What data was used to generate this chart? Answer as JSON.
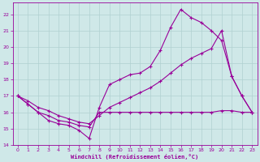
{
  "xlabel": "Windchill (Refroidissement éolien,°C)",
  "bg_color": "#cfe8e8",
  "line_color": "#990099",
  "grid_color": "#b0d0d0",
  "xlim": [
    -0.5,
    23.5
  ],
  "ylim": [
    14,
    22.7
  ],
  "xticks": [
    0,
    1,
    2,
    3,
    4,
    5,
    6,
    7,
    8,
    9,
    10,
    11,
    12,
    13,
    14,
    15,
    16,
    17,
    18,
    19,
    20,
    21,
    22,
    23
  ],
  "yticks": [
    14,
    15,
    16,
    17,
    18,
    19,
    20,
    21,
    22
  ],
  "line1_x": [
    0,
    1,
    2,
    3,
    4,
    5,
    6,
    7,
    8,
    9,
    10,
    11,
    12,
    13,
    14,
    15,
    16,
    17,
    18,
    19,
    20,
    21,
    22,
    23
  ],
  "line1_y": [
    17.0,
    16.5,
    16.0,
    15.5,
    15.3,
    15.2,
    14.9,
    14.4,
    16.3,
    17.7,
    18.0,
    18.3,
    18.4,
    18.8,
    19.8,
    21.2,
    22.3,
    21.8,
    21.5,
    21.0,
    20.4,
    18.2,
    17.0,
    16.0
  ],
  "line2_x": [
    0,
    1,
    2,
    3,
    4,
    5,
    6,
    7,
    8,
    9,
    10,
    11,
    12,
    13,
    14,
    15,
    16,
    17,
    18,
    19,
    20,
    21,
    22,
    23
  ],
  "line2_y": [
    17.0,
    16.7,
    16.3,
    16.1,
    15.8,
    15.6,
    15.4,
    15.3,
    15.8,
    16.3,
    16.6,
    16.9,
    17.2,
    17.5,
    17.9,
    18.4,
    18.9,
    19.3,
    19.6,
    19.9,
    21.0,
    18.2,
    17.0,
    16.0
  ],
  "line3_x": [
    0,
    1,
    2,
    3,
    4,
    5,
    6,
    7,
    8,
    9,
    10,
    11,
    12,
    13,
    14,
    15,
    16,
    17,
    18,
    19,
    20,
    21,
    22,
    23
  ],
  "line3_y": [
    17.0,
    16.5,
    16.0,
    15.8,
    15.5,
    15.4,
    15.2,
    15.1,
    16.0,
    16.0,
    16.0,
    16.0,
    16.0,
    16.0,
    16.0,
    16.0,
    16.0,
    16.0,
    16.0,
    16.0,
    16.1,
    16.1,
    16.0,
    16.0
  ]
}
